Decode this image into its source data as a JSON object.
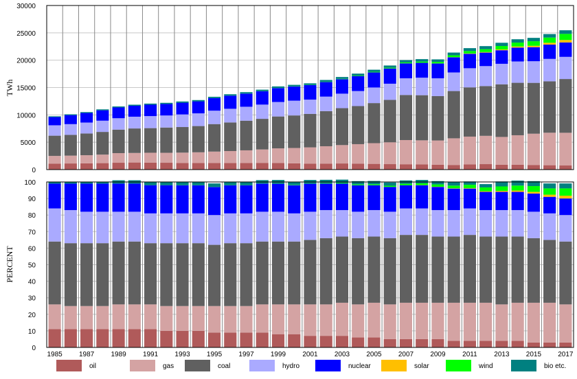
{
  "chart_data": [
    {
      "type": "bar",
      "stacked": true,
      "ylabel": "TWh",
      "ylim": [
        0,
        30000
      ],
      "yticks": [
        "0",
        "5000",
        "10000",
        "15000",
        "20000",
        "25000",
        "30000"
      ],
      "grid": true,
      "x": [
        1985,
        1986,
        1987,
        1988,
        1989,
        1990,
        1991,
        1992,
        1993,
        1994,
        1995,
        1996,
        1997,
        1998,
        1999,
        2000,
        2001,
        2002,
        2003,
        2004,
        2005,
        2006,
        2007,
        2008,
        2009,
        2010,
        2011,
        2012,
        2013,
        2014,
        2015,
        2016,
        2017
      ],
      "xticks": [
        "1985",
        "1987",
        "1989",
        "1991",
        "1993",
        "1995",
        "1997",
        "1999",
        "2001",
        "2003",
        "2005",
        "2007",
        "2009",
        "2011",
        "2013",
        "2015",
        "2017"
      ],
      "series": [
        {
          "name": "oil",
          "color": "#b05a5a",
          "values": [
            1100,
            1120,
            1150,
            1180,
            1250,
            1300,
            1280,
            1250,
            1220,
            1200,
            1200,
            1210,
            1220,
            1230,
            1200,
            1150,
            1100,
            1100,
            1120,
            1100,
            1050,
            1000,
            980,
            950,
            900,
            850,
            950,
            1000,
            900,
            900,
            850,
            800,
            750
          ]
        },
        {
          "name": "gas",
          "color": "#d4a3a3",
          "values": [
            1400,
            1430,
            1480,
            1560,
            1760,
            1740,
            1800,
            1820,
            1880,
            1960,
            2090,
            2180,
            2300,
            2450,
            2680,
            2800,
            2960,
            3170,
            3360,
            3550,
            3780,
            3990,
            4420,
            4400,
            4420,
            4870,
            5080,
            5170,
            5070,
            5380,
            5710,
            5940,
            5980
          ]
        },
        {
          "name": "coal",
          "color": "#606060",
          "values": [
            3700,
            3800,
            3970,
            4150,
            4300,
            4480,
            4500,
            4620,
            4680,
            4800,
            5030,
            5230,
            5420,
            5600,
            5830,
            5950,
            6130,
            6420,
            6750,
            6960,
            7330,
            7760,
            8240,
            8250,
            8120,
            8640,
            9000,
            9100,
            9620,
            9590,
            9300,
            9400,
            9830
          ]
        },
        {
          "name": "hydro",
          "color": "#aaaaff",
          "values": [
            1900,
            1960,
            2000,
            2050,
            2080,
            2150,
            2200,
            2200,
            2300,
            2320,
            2450,
            2500,
            2550,
            2600,
            2650,
            2700,
            2600,
            2650,
            2650,
            2750,
            2850,
            2950,
            3050,
            3200,
            3250,
            3400,
            3500,
            3650,
            3750,
            3900,
            3950,
            4100,
            4050
          ]
        },
        {
          "name": "nuclear",
          "color": "#0000ff",
          "values": [
            1500,
            1650,
            1750,
            1900,
            1970,
            2000,
            2080,
            2100,
            2150,
            2200,
            2300,
            2400,
            2400,
            2450,
            2550,
            2580,
            2650,
            2680,
            2650,
            2750,
            2760,
            2790,
            2730,
            2720,
            2700,
            2760,
            2640,
            2470,
            2480,
            2540,
            2570,
            2610,
            2640
          ]
        },
        {
          "name": "solar",
          "color": "#ffbf00",
          "values": [
            0,
            0,
            0,
            0,
            0,
            0,
            0,
            0,
            0,
            0,
            0,
            0,
            0,
            0,
            0,
            1,
            1,
            2,
            2,
            3,
            4,
            6,
            7,
            12,
            21,
            33,
            65,
            100,
            140,
            190,
            250,
            330,
            440
          ]
        },
        {
          "name": "wind",
          "color": "#00ff00",
          "values": [
            0,
            0,
            1,
            2,
            3,
            4,
            5,
            6,
            7,
            9,
            10,
            12,
            15,
            20,
            25,
            31,
            38,
            52,
            63,
            85,
            104,
            132,
            171,
            220,
            276,
            342,
            437,
            522,
            635,
            716,
            831,
            958,
            1120
          ]
        },
        {
          "name": "bio etc.",
          "color": "#008080",
          "values": [
            140,
            150,
            160,
            170,
            180,
            190,
            200,
            210,
            215,
            220,
            230,
            240,
            250,
            260,
            270,
            280,
            290,
            310,
            330,
            350,
            380,
            400,
            420,
            440,
            460,
            500,
            530,
            560,
            590,
            610,
            620,
            640,
            660
          ]
        }
      ]
    },
    {
      "type": "bar",
      "stacked": true,
      "ylabel": "PERCENT",
      "ylim": [
        0,
        100
      ],
      "yticks": [
        "0",
        "10",
        "20",
        "30",
        "40",
        "50",
        "60",
        "70",
        "80",
        "90",
        "100"
      ],
      "grid": true,
      "x": [
        1985,
        1986,
        1987,
        1988,
        1989,
        1990,
        1991,
        1992,
        1993,
        1994,
        1995,
        1996,
        1997,
        1998,
        1999,
        2000,
        2001,
        2002,
        2003,
        2004,
        2005,
        2006,
        2007,
        2008,
        2009,
        2010,
        2011,
        2012,
        2013,
        2014,
        2015,
        2016,
        2017
      ],
      "xticks": [
        "1985",
        "1987",
        "1989",
        "1991",
        "1993",
        "1995",
        "1997",
        "1999",
        "2001",
        "2003",
        "2005",
        "2007",
        "2009",
        "2011",
        "2013",
        "2015",
        "2017"
      ],
      "series": [
        {
          "name": "oil",
          "color": "#b05a5a",
          "values": [
            11,
            11,
            11,
            11,
            11,
            11,
            11,
            10,
            10,
            10,
            9,
            9,
            9,
            9,
            8,
            8,
            7,
            7,
            7,
            6,
            6,
            5,
            5,
            5,
            5,
            4,
            4,
            4,
            4,
            4,
            3,
            3,
            3
          ]
        },
        {
          "name": "gas",
          "color": "#d4a3a3",
          "values": [
            15,
            14,
            14,
            14,
            15,
            15,
            15,
            15,
            15,
            15,
            16,
            16,
            16,
            17,
            18,
            18,
            19,
            19,
            20,
            20,
            21,
            21,
            22,
            22,
            22,
            23,
            23,
            23,
            22,
            23,
            24,
            24,
            23
          ]
        },
        {
          "name": "coal",
          "color": "#606060",
          "values": [
            38,
            38,
            38,
            38,
            38,
            38,
            37,
            38,
            38,
            38,
            37,
            38,
            38,
            38,
            38,
            38,
            39,
            40,
            40,
            40,
            40,
            40,
            41,
            41,
            40,
            40,
            41,
            40,
            41,
            40,
            39,
            38,
            38
          ]
        },
        {
          "name": "hydro",
          "color": "#aaaaff",
          "values": [
            20,
            20,
            19,
            19,
            18,
            18,
            18,
            18,
            18,
            18,
            18,
            18,
            18,
            18,
            18,
            17,
            17,
            17,
            16,
            16,
            16,
            16,
            16,
            16,
            16,
            16,
            16,
            16,
            16,
            16,
            16,
            16,
            16
          ]
        },
        {
          "name": "nuclear",
          "color": "#0000ff",
          "values": [
            15,
            16,
            17,
            17,
            17,
            17,
            17,
            17,
            17,
            17,
            17,
            17,
            17,
            17,
            17,
            17,
            17,
            16,
            16,
            16,
            15,
            15,
            14,
            14,
            14,
            13,
            12,
            11,
            11,
            11,
            11,
            10,
            10
          ]
        },
        {
          "name": "solar",
          "color": "#ffbf00",
          "values": [
            0,
            0,
            0,
            0,
            0,
            0,
            0,
            0,
            0,
            0,
            0,
            0,
            0,
            0,
            0,
            0,
            0,
            0,
            0,
            0,
            0,
            0,
            0,
            0.1,
            0.1,
            0.2,
            0.3,
            0.4,
            0.6,
            0.8,
            1,
            1.3,
            1.7
          ]
        },
        {
          "name": "wind",
          "color": "#00ff00",
          "values": [
            0,
            0,
            0,
            0,
            0,
            0,
            0,
            0,
            0.1,
            0.1,
            0.1,
            0.1,
            0.1,
            0.1,
            0.2,
            0.2,
            0.2,
            0.3,
            0.4,
            0.5,
            0.6,
            0.7,
            0.9,
            1.1,
            1.4,
            1.6,
            2,
            2.3,
            2.7,
            3,
            3.5,
            3.8,
            4.4
          ]
        },
        {
          "name": "bio etc.",
          "color": "#008080",
          "values": [
            1,
            1,
            1,
            1,
            2,
            2,
            2,
            2,
            2,
            2,
            2,
            2,
            2,
            2,
            2,
            2,
            2,
            2,
            2,
            2,
            2,
            2,
            2,
            2,
            2,
            2,
            2,
            2,
            3,
            3,
            3,
            3,
            3
          ]
        }
      ]
    }
  ],
  "legend": [
    {
      "name": "oil",
      "color": "#b05a5a"
    },
    {
      "name": "gas",
      "color": "#d4a3a3"
    },
    {
      "name": "coal",
      "color": "#606060"
    },
    {
      "name": "hydro",
      "color": "#aaaaff"
    },
    {
      "name": "nuclear",
      "color": "#0000ff"
    },
    {
      "name": "solar",
      "color": "#ffbf00"
    },
    {
      "name": "wind",
      "color": "#00ff00"
    },
    {
      "name": "bio etc.",
      "color": "#008080"
    }
  ]
}
